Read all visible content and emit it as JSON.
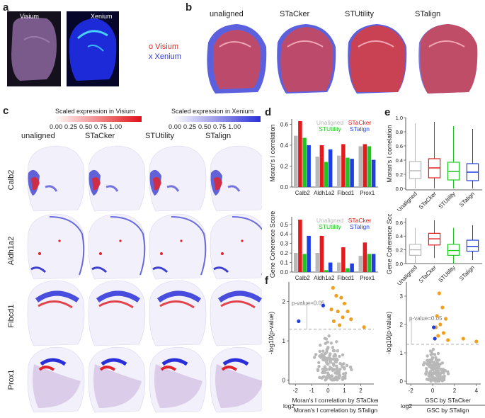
{
  "panels": {
    "a": "a",
    "b": "b",
    "c": "c",
    "d": "d",
    "e": "e",
    "f": "f"
  },
  "panel_a": {
    "visium_label": "Visium",
    "xenium_label": "Xenium"
  },
  "panel_b": {
    "titles": [
      "unaligned",
      "STaCker",
      "STUtility",
      "STalign"
    ],
    "legend_visium": "o Visium",
    "legend_xenium": "x Xenium",
    "colors": {
      "visium": "#e8281e",
      "xenium": "#2b35e0"
    }
  },
  "panel_c": {
    "scale_visium": "Scaled expression in Visium",
    "scale_xenium": "Scaled expression in Xenium",
    "ticks_visium": "0.00 0.25 0.50 0.75 1.00",
    "ticks_xenium": "0.00 0.25 0.50 0.75 1.00",
    "columns": [
      "unaligned",
      "STaCker",
      "STUtility",
      "STalign"
    ],
    "genes": [
      "Calb2",
      "Aldh1a2",
      "Fibcd1",
      "Prox1"
    ]
  },
  "chart_data": [
    {
      "id": "d-top",
      "type": "bar",
      "ylabel": "Moran's I correlation",
      "categories": [
        "Calb2",
        "Aldh1a2",
        "Fibcd1",
        "Prox1"
      ],
      "ylim": [
        0,
        0.65
      ],
      "yticks": [
        "0.0",
        "0.2",
        "0.4",
        "0.6"
      ],
      "series": [
        {
          "name": "Unaligned",
          "color": "#b8b8b8",
          "values": [
            0.49,
            0.29,
            0.3,
            0.39
          ]
        },
        {
          "name": "STaCker",
          "color": "#e41a1c",
          "values": [
            0.63,
            0.4,
            0.41,
            0.41
          ]
        },
        {
          "name": "STUtility",
          "color": "#22c422",
          "values": [
            0.47,
            0.24,
            0.28,
            0.39
          ]
        },
        {
          "name": "STalign",
          "color": "#1f3fe0",
          "values": [
            0.4,
            0.36,
            0.27,
            0.26
          ]
        }
      ]
    },
    {
      "id": "d-bottom",
      "type": "bar",
      "ylabel": "Gene Coherence Score",
      "categories": [
        "Calb2",
        "Aldh1a2",
        "Fibcd1",
        "Prox1"
      ],
      "ylim": [
        0,
        0.58
      ],
      "yticks": [
        "0.0",
        "0.1",
        "0.2",
        "0.3",
        "0.4",
        "0.5"
      ],
      "series": [
        {
          "name": "Unaligned",
          "color": "#b8b8b8",
          "values": [
            0.2,
            0.2,
            0.1,
            0.17
          ]
        },
        {
          "name": "STaCker",
          "color": "#e41a1c",
          "values": [
            0.55,
            0.38,
            0.26,
            0.31
          ]
        },
        {
          "name": "STUtility",
          "color": "#22c422",
          "values": [
            0.19,
            0.02,
            0.04,
            0.19
          ]
        },
        {
          "name": "STalign",
          "color": "#1f3fe0",
          "values": [
            0.38,
            0.1,
            0.09,
            0.19
          ]
        }
      ]
    },
    {
      "id": "e-top",
      "type": "box",
      "ylabel": "Moran's I correlation",
      "categories": [
        "Unaligned",
        "STaCker",
        "STUtility",
        "STalign"
      ],
      "ylim": [
        -0.02,
        1.0
      ],
      "yticks": [
        "0.0",
        "0.2",
        "0.4",
        "0.6",
        "0.8",
        "1.0"
      ],
      "colors": [
        "#b8b8b8",
        "#e41a1c",
        "#22c422",
        "#1f3fe0"
      ],
      "boxes": [
        {
          "min": 0.0,
          "q1": 0.14,
          "median": 0.25,
          "q3": 0.38,
          "max": 0.92
        },
        {
          "min": 0.0,
          "q1": 0.15,
          "median": 0.29,
          "q3": 0.42,
          "max": 0.94
        },
        {
          "min": 0.0,
          "q1": 0.12,
          "median": 0.24,
          "q3": 0.37,
          "max": 0.88
        },
        {
          "min": 0.0,
          "q1": 0.11,
          "median": 0.23,
          "q3": 0.35,
          "max": 0.84
        }
      ]
    },
    {
      "id": "e-bottom",
      "type": "box",
      "ylabel": "Gene Coherence Score",
      "categories": [
        "Unaligned",
        "STaCker",
        "STUtility",
        "STalign"
      ],
      "ylim": [
        0,
        0.66
      ],
      "yticks": [
        "0.0",
        "0.2",
        "0.4",
        "0.6"
      ],
      "colors": [
        "#b8b8b8",
        "#e41a1c",
        "#22c422",
        "#1f3fe0"
      ],
      "boxes": [
        {
          "min": 0.0,
          "q1": 0.12,
          "median": 0.2,
          "q3": 0.28,
          "max": 0.52
        },
        {
          "min": 0.08,
          "q1": 0.27,
          "median": 0.36,
          "q3": 0.44,
          "max": 0.63
        },
        {
          "min": 0.0,
          "q1": 0.12,
          "median": 0.19,
          "q3": 0.28,
          "max": 0.52
        },
        {
          "min": 0.05,
          "q1": 0.18,
          "median": 0.25,
          "q3": 0.34,
          "max": 0.56
        }
      ]
    },
    {
      "id": "f-left",
      "type": "scatter",
      "ylabel": "-log10(p-value)",
      "xlabel_num": "Moran's I correlation by STaCker",
      "xlabel_den": "Moran's I correlation by STalign",
      "xlabel_prefix": "log2",
      "threshold_label": "p-value=0.05",
      "threshold": 1.3,
      "xlim": [
        -2.4,
        2.8
      ],
      "ylim": [
        -0.1,
        2.5
      ],
      "xticks": [
        "-2",
        "-1",
        "0",
        "1",
        "2"
      ],
      "yticks": [
        "0",
        "1",
        "2"
      ],
      "highlight_orange": [
        [
          0.3,
          2.35
        ],
        [
          0.5,
          2.15
        ],
        [
          0.8,
          2.1
        ],
        [
          1.0,
          1.95
        ],
        [
          0.2,
          1.8
        ],
        [
          0.6,
          1.75
        ],
        [
          0.9,
          1.6
        ],
        [
          1.4,
          1.55
        ],
        [
          0.35,
          1.5
        ],
        [
          0.7,
          1.4
        ],
        [
          2.2,
          1.35
        ],
        [
          1.2,
          1.75
        ]
      ],
      "highlight_blue": [
        [
          -1.8,
          1.5
        ],
        [
          -0.3,
          1.9
        ]
      ]
    },
    {
      "id": "f-right",
      "type": "scatter",
      "ylabel": "-log10(p-value)",
      "xlabel_num": "GSC by STaCker",
      "xlabel_den": "GSC by STalign",
      "xlabel_prefix": "log2",
      "threshold_label": "p-value=0.05",
      "threshold": 1.3,
      "xlim": [
        -2.4,
        4.4
      ],
      "ylim": [
        -0.1,
        3.5
      ],
      "xticks": [
        "-2",
        "0",
        "2",
        "4"
      ],
      "yticks": [
        "0",
        "1",
        "2",
        "3"
      ],
      "highlight_orange": [
        [
          0.6,
          3.1
        ],
        [
          0.9,
          2.6
        ],
        [
          0.4,
          2.3
        ],
        [
          1.2,
          2.2
        ],
        [
          0.7,
          2.0
        ],
        [
          0.3,
          1.9
        ],
        [
          1.0,
          1.7
        ],
        [
          0.5,
          1.6
        ],
        [
          2.8,
          1.5
        ],
        [
          4.0,
          1.4
        ],
        [
          1.4,
          1.45
        ]
      ],
      "highlight_blue": [
        [
          0.1,
          1.9
        ],
        [
          0.2,
          1.5
        ]
      ]
    }
  ]
}
